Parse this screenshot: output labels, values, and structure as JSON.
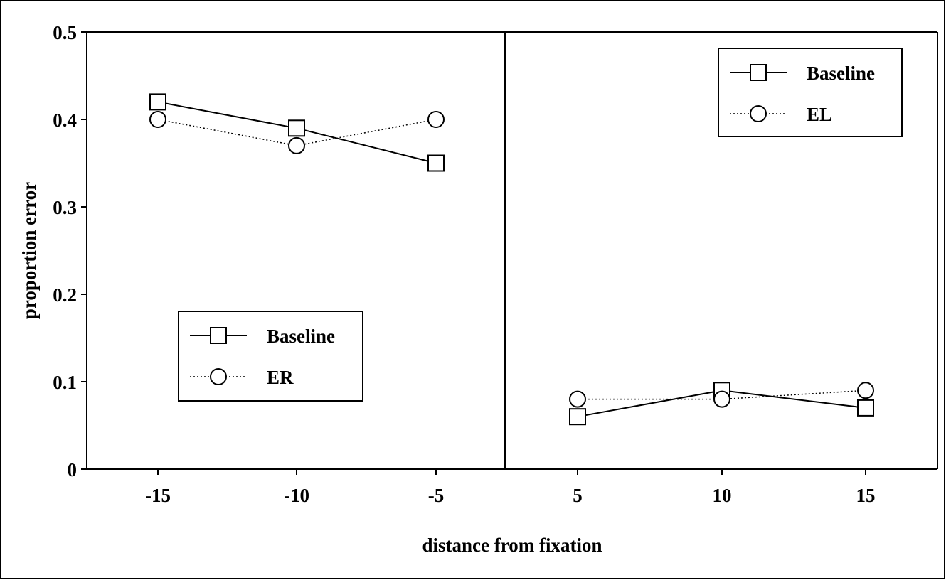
{
  "chart_data": {
    "type": "line",
    "xlabel": "distance from fixation",
    "ylabel": "proportion error",
    "ylim": [
      0,
      0.5
    ],
    "y_ticks": [
      "0",
      "0.1",
      "0.2",
      "0.3",
      "0.4",
      "0.5"
    ],
    "y_tick_values": [
      0,
      0.1,
      0.2,
      0.3,
      0.4,
      0.5
    ],
    "x_ticks": [
      "-15",
      "-10",
      "-5",
      "5",
      "10",
      "15"
    ],
    "x_tick_values": [
      -15,
      -10,
      -5,
      5,
      10,
      15
    ],
    "panels": [
      {
        "side": "left",
        "legend_position": "bottom-left",
        "series": [
          {
            "name": "Baseline",
            "marker": "square",
            "line": "solid",
            "x": [
              -15,
              -10,
              -5
            ],
            "values": [
              0.42,
              0.39,
              0.35
            ]
          },
          {
            "name": "ER",
            "marker": "circle",
            "line": "dotted",
            "x": [
              -15,
              -10,
              -5
            ],
            "values": [
              0.4,
              0.37,
              0.4
            ]
          }
        ]
      },
      {
        "side": "right",
        "legend_position": "top-right",
        "series": [
          {
            "name": "Baseline",
            "marker": "square",
            "line": "solid",
            "x": [
              5,
              10,
              15
            ],
            "values": [
              0.06,
              0.09,
              0.07
            ]
          },
          {
            "name": "EL",
            "marker": "circle",
            "line": "dotted",
            "x": [
              5,
              10,
              15
            ],
            "values": [
              0.08,
              0.08,
              0.09
            ]
          }
        ]
      }
    ]
  }
}
